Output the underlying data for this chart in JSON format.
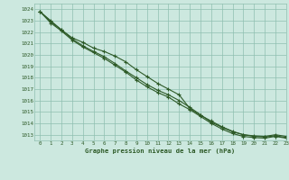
{
  "title": "Graphe pression niveau de la mer (hPa)",
  "bg_color": "#cce8df",
  "grid_color": "#8fbfb0",
  "line_color": "#2d5a27",
  "xlim": [
    -0.5,
    23
  ],
  "ylim": [
    1012.5,
    1024.5
  ],
  "yticks": [
    1013,
    1014,
    1015,
    1016,
    1017,
    1018,
    1019,
    1020,
    1021,
    1022,
    1023,
    1024
  ],
  "xticks": [
    0,
    1,
    2,
    3,
    4,
    5,
    6,
    7,
    8,
    9,
    10,
    11,
    12,
    13,
    14,
    15,
    16,
    17,
    18,
    19,
    20,
    21,
    22,
    23
  ],
  "line1": [
    1023.8,
    1023.0,
    1022.2,
    1021.5,
    1021.1,
    1020.6,
    1020.3,
    1019.9,
    1019.4,
    1018.7,
    1018.1,
    1017.5,
    1017.0,
    1016.5,
    1015.3,
    1014.7,
    1014.2,
    1013.7,
    1013.3,
    1013.0,
    1012.9,
    1012.85,
    1013.0,
    1012.85
  ],
  "line2": [
    1023.8,
    1022.9,
    1022.2,
    1021.4,
    1020.8,
    1020.3,
    1019.85,
    1019.25,
    1018.6,
    1018.0,
    1017.4,
    1016.9,
    1016.5,
    1016.0,
    1015.4,
    1014.75,
    1014.1,
    1013.65,
    1013.25,
    1013.0,
    1012.85,
    1012.8,
    1012.9,
    1012.75
  ],
  "line3": [
    1023.8,
    1022.8,
    1022.1,
    1021.3,
    1020.7,
    1020.2,
    1019.7,
    1019.1,
    1018.5,
    1017.8,
    1017.2,
    1016.7,
    1016.3,
    1015.7,
    1015.2,
    1014.6,
    1014.0,
    1013.5,
    1013.1,
    1012.85,
    1012.75,
    1012.7,
    1012.85,
    1012.7
  ]
}
